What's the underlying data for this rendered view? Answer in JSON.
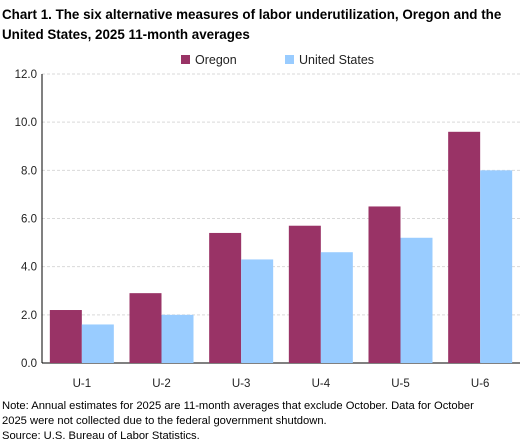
{
  "title": "Chart 1. The six alternative measures of labor underutilization, Oregon and the United States, 2025 11-month averages",
  "notes": {
    "note_line1": "Note: Annual estimates for 2025 are 11-month averages that exclude October. Data for October",
    "note_line2": "2025 were not collected due to the federal government shutdown.",
    "source": "Source: U.S. Bureau of Labor Statistics."
  },
  "chart_data": {
    "type": "bar",
    "title": "Chart 1. The six alternative measures of labor underutilization, Oregon and the United States, 2025 11-month averages",
    "xlabel": "",
    "ylabel": "",
    "categories": [
      "U-1",
      "U-2",
      "U-3",
      "U-4",
      "U-5",
      "U-6"
    ],
    "series": [
      {
        "name": "Oregon",
        "color": "#993366",
        "values": [
          2.2,
          2.9,
          5.4,
          5.7,
          6.5,
          9.6
        ]
      },
      {
        "name": "United States",
        "color": "#99ccff",
        "values": [
          1.6,
          2.0,
          4.3,
          4.6,
          5.2,
          8.0
        ]
      }
    ],
    "ylim": [
      0,
      12
    ],
    "yticks": [
      "0.0",
      "2.0",
      "4.0",
      "6.0",
      "8.0",
      "10.0",
      "12.0"
    ],
    "grid": true,
    "legend_position": "top-center"
  }
}
